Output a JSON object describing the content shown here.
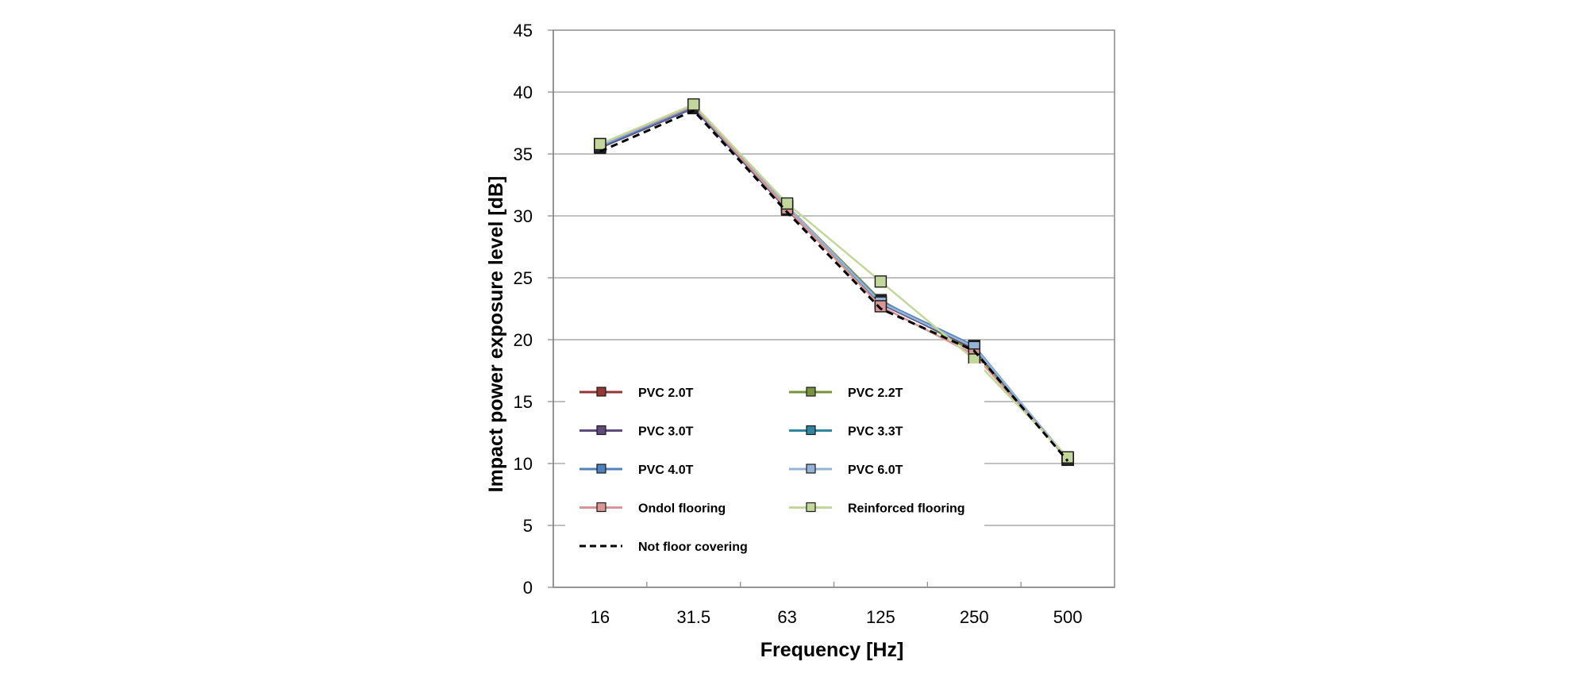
{
  "chart_data": {
    "type": "line",
    "title": "",
    "xlabel": "Frequency [Hz]",
    "ylabel": "Impact power exposure level  [dB]",
    "categories": [
      "16",
      "31.5",
      "63",
      "125",
      "250",
      "500"
    ],
    "ylim": [
      0,
      45
    ],
    "yticks": [
      0,
      5,
      10,
      15,
      20,
      25,
      30,
      35,
      40,
      45
    ],
    "grid": "horizontal",
    "legend_position": "lower-left inside plot",
    "series": [
      {
        "name": "PVC 2.0T",
        "color": "#943634",
        "marker": "square",
        "dash": false,
        "values": [
          35.6,
          38.8,
          30.6,
          23.0,
          19.2,
          10.3
        ]
      },
      {
        "name": "PVC 2.2T",
        "color": "#77933c",
        "marker": "square",
        "dash": false,
        "values": [
          35.7,
          38.9,
          30.8,
          23.2,
          19.0,
          10.4
        ]
      },
      {
        "name": "PVC 3.0T",
        "color": "#604a7b",
        "marker": "square",
        "dash": false,
        "values": [
          35.5,
          38.7,
          30.5,
          22.9,
          19.3,
          10.3
        ]
      },
      {
        "name": "PVC 3.3T",
        "color": "#31859c",
        "marker": "square",
        "dash": false,
        "values": [
          35.6,
          38.8,
          30.6,
          23.0,
          19.4,
          10.3
        ]
      },
      {
        "name": "PVC 4.0T",
        "color": "#4f81bd",
        "marker": "square",
        "dash": false,
        "values": [
          35.6,
          38.8,
          30.7,
          23.1,
          19.5,
          10.3
        ]
      },
      {
        "name": "PVC 6.0T",
        "color": "#95b3d7",
        "marker": "square",
        "dash": false,
        "values": [
          35.7,
          38.9,
          30.8,
          23.0,
          19.4,
          10.4
        ]
      },
      {
        "name": "Ondol flooring",
        "color": "#d99694",
        "marker": "square",
        "dash": false,
        "values": [
          35.8,
          38.9,
          30.6,
          22.7,
          18.8,
          10.4
        ]
      },
      {
        "name": "Reinforced flooring",
        "color": "#c3d69b",
        "marker": "square",
        "dash": false,
        "values": [
          35.8,
          39.0,
          31.0,
          24.7,
          18.4,
          10.5
        ]
      },
      {
        "name": "Not floor covering",
        "color": "#000000",
        "marker": "none",
        "dash": true,
        "values": [
          35.2,
          38.5,
          30.3,
          22.5,
          19.1,
          10.2
        ]
      }
    ]
  }
}
